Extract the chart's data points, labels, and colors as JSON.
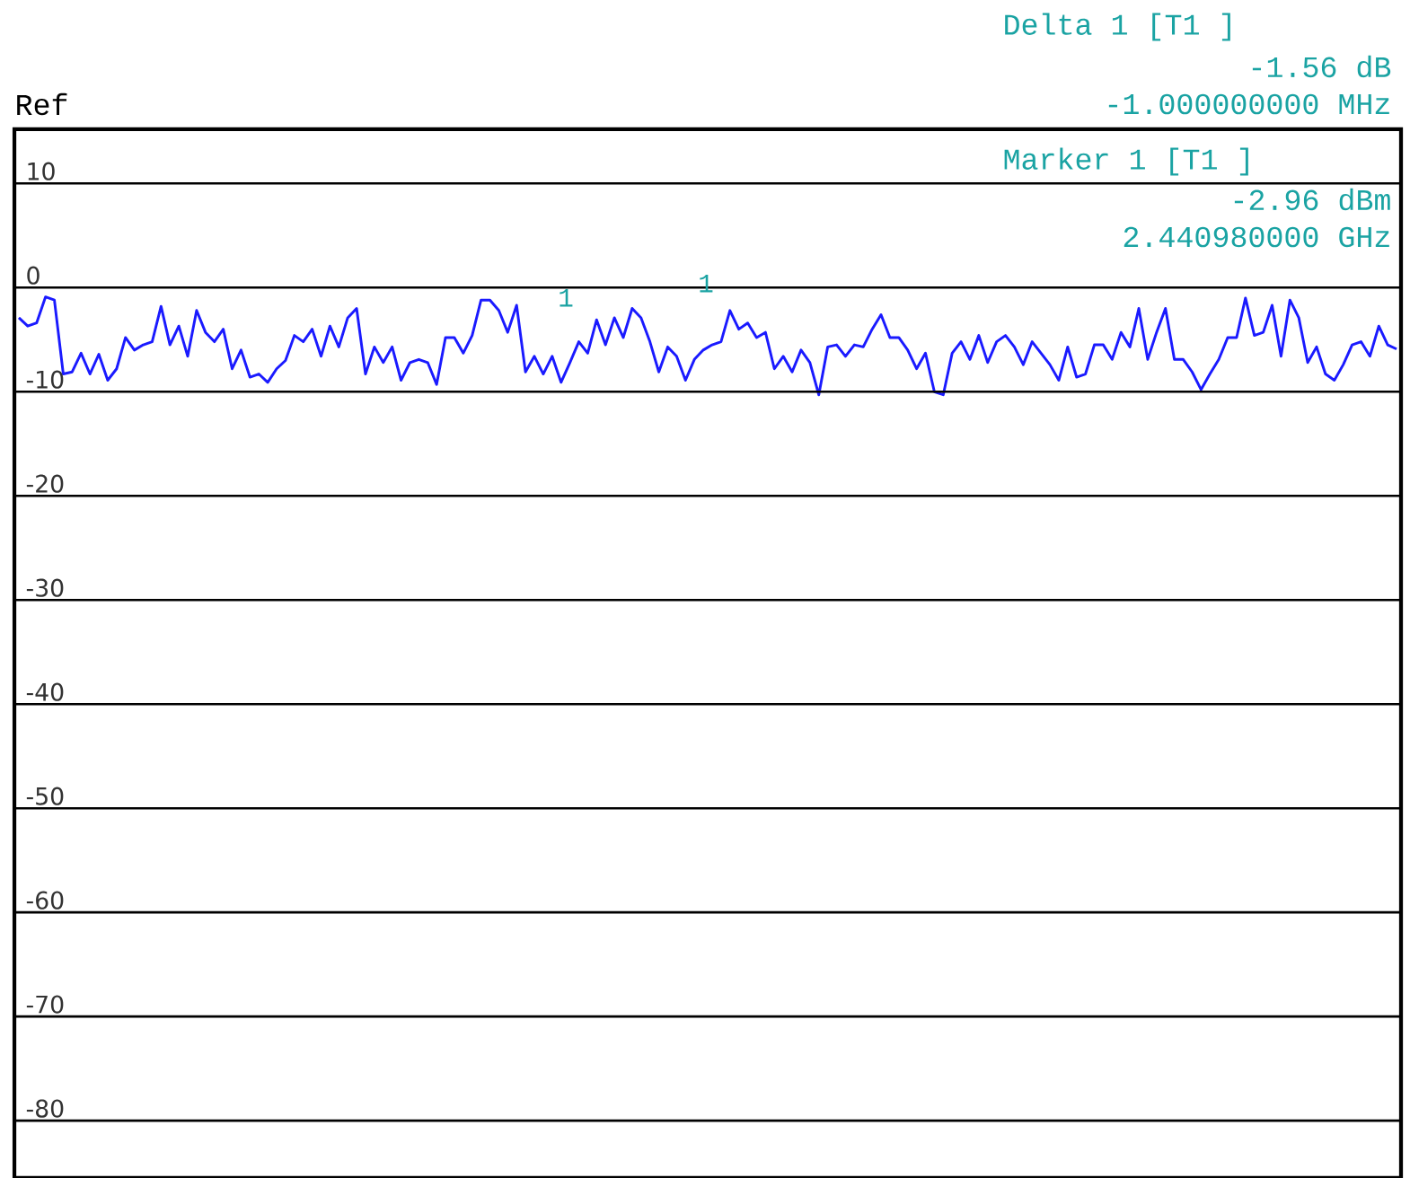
{
  "chart_data": {
    "type": "line",
    "categories": [
      null,
      null,
      null,
      null,
      null,
      null,
      null,
      null,
      null,
      null,
      null,
      null,
      null,
      null,
      null,
      null,
      null,
      null,
      null,
      null,
      null,
      null,
      null,
      null,
      null,
      null,
      null,
      null,
      null,
      null,
      null,
      null,
      null,
      null,
      null,
      null,
      null,
      null,
      null,
      null,
      null,
      null,
      null,
      null,
      null,
      null,
      null,
      null,
      null,
      null,
      null,
      null,
      null,
      null,
      null,
      null,
      null,
      null,
      null,
      null,
      null,
      null,
      null,
      null,
      null,
      null,
      null,
      null,
      null,
      null,
      null,
      null,
      null,
      null,
      null,
      null,
      null,
      null,
      null,
      null,
      null,
      null,
      null,
      null,
      null,
      null,
      null,
      null,
      null,
      null,
      null,
      null,
      null,
      null,
      null,
      null,
      null,
      null,
      null,
      null,
      null,
      null,
      null,
      null,
      null,
      null,
      null,
      null,
      null,
      null,
      null,
      null,
      null,
      null,
      null,
      null,
      null,
      null,
      null,
      null,
      null,
      null,
      null,
      null,
      null,
      null,
      null,
      null,
      null,
      null,
      null,
      null,
      null,
      null,
      null,
      null,
      null,
      null,
      null,
      null,
      null,
      null,
      null,
      null,
      null,
      null,
      null,
      null,
      null,
      null,
      null,
      null,
      null,
      null,
      null,
      null
    ],
    "series": [
      {
        "color": "#1a1aff",
        "values": [
          -2.9,
          -3.7,
          -3.4,
          -0.9,
          -1.2,
          -8.3,
          -8.1,
          -6.3,
          -8.3,
          -6.4,
          -8.9,
          -7.8,
          -4.8,
          -6.0,
          -5.5,
          -5.2,
          -1.8,
          -5.5,
          -3.7,
          -6.6,
          -2.2,
          -4.3,
          -5.2,
          -4.0,
          -7.8,
          -6.0,
          -8.6,
          -8.3,
          -9.1,
          -7.8,
          -7.0,
          -4.6,
          -5.2,
          -4.0,
          -6.6,
          -3.7,
          -5.7,
          -2.9,
          -2.0,
          -8.3,
          -5.7,
          -7.2,
          -5.7,
          -8.9,
          -7.2,
          -6.9,
          -7.2,
          -9.3,
          -4.8,
          -4.8,
          -6.3,
          -4.6,
          -1.2,
          -1.2,
          -2.2,
          -4.3,
          -1.7,
          -8.1,
          -6.6,
          -8.3,
          -6.6,
          -9.1,
          -7.2,
          -5.2,
          -6.3,
          -3.1,
          -5.5,
          -2.9,
          -4.8,
          -2.0,
          -2.9,
          -5.2,
          -8.1,
          -5.7,
          -6.6,
          -8.9,
          -6.9,
          -6.0,
          -5.5,
          -5.2,
          -2.2,
          -4.0,
          -3.4,
          -4.8,
          -4.3,
          -7.8,
          -6.6,
          -8.1,
          -6.0,
          -7.2,
          -10.3,
          -5.7,
          -5.5,
          -6.6,
          -5.5,
          -5.7,
          -4.0,
          -2.6,
          -4.8,
          -4.8,
          -6.0,
          -7.8,
          -6.3,
          -10.0,
          -10.3,
          -6.3,
          -5.2,
          -6.9,
          -4.6,
          -7.2,
          -5.2,
          -4.6,
          -5.7,
          -7.4,
          -5.2,
          -6.3,
          -7.4,
          -8.9,
          -5.7,
          -8.6,
          -8.3,
          -5.5,
          -5.5,
          -6.9,
          -4.3,
          -5.7,
          -2.0,
          -6.9,
          -4.3,
          -2.0,
          -6.9,
          -6.9,
          -8.1,
          -9.8,
          -8.3,
          -6.9,
          -4.8,
          -4.8,
          -1.0,
          -4.6,
          -4.3,
          -1.7,
          -6.6,
          -1.2,
          -2.9,
          -7.2,
          -5.7,
          -8.3,
          -8.9,
          -7.4,
          -5.5,
          -5.2,
          -6.6,
          -3.7,
          -5.5,
          -5.9
        ]
      }
    ],
    "ylim": [
      -85.5,
      15.2
    ],
    "yticks": [
      10,
      0,
      -10,
      -20,
      -30,
      -40,
      -50,
      -60,
      -70,
      -80
    ],
    "tick_labels": "y",
    "grid": "y",
    "marker": "none",
    "line_style": "solid",
    "annotations": [
      "Ref",
      "Delta 1 [T1 ]",
      "-1.56 dB",
      "-1.000000000 MHz",
      "Marker 1 [T1 ]",
      "-2.96 dBm",
      "2.440980000 GHz",
      "1",
      "1"
    ]
  }
}
